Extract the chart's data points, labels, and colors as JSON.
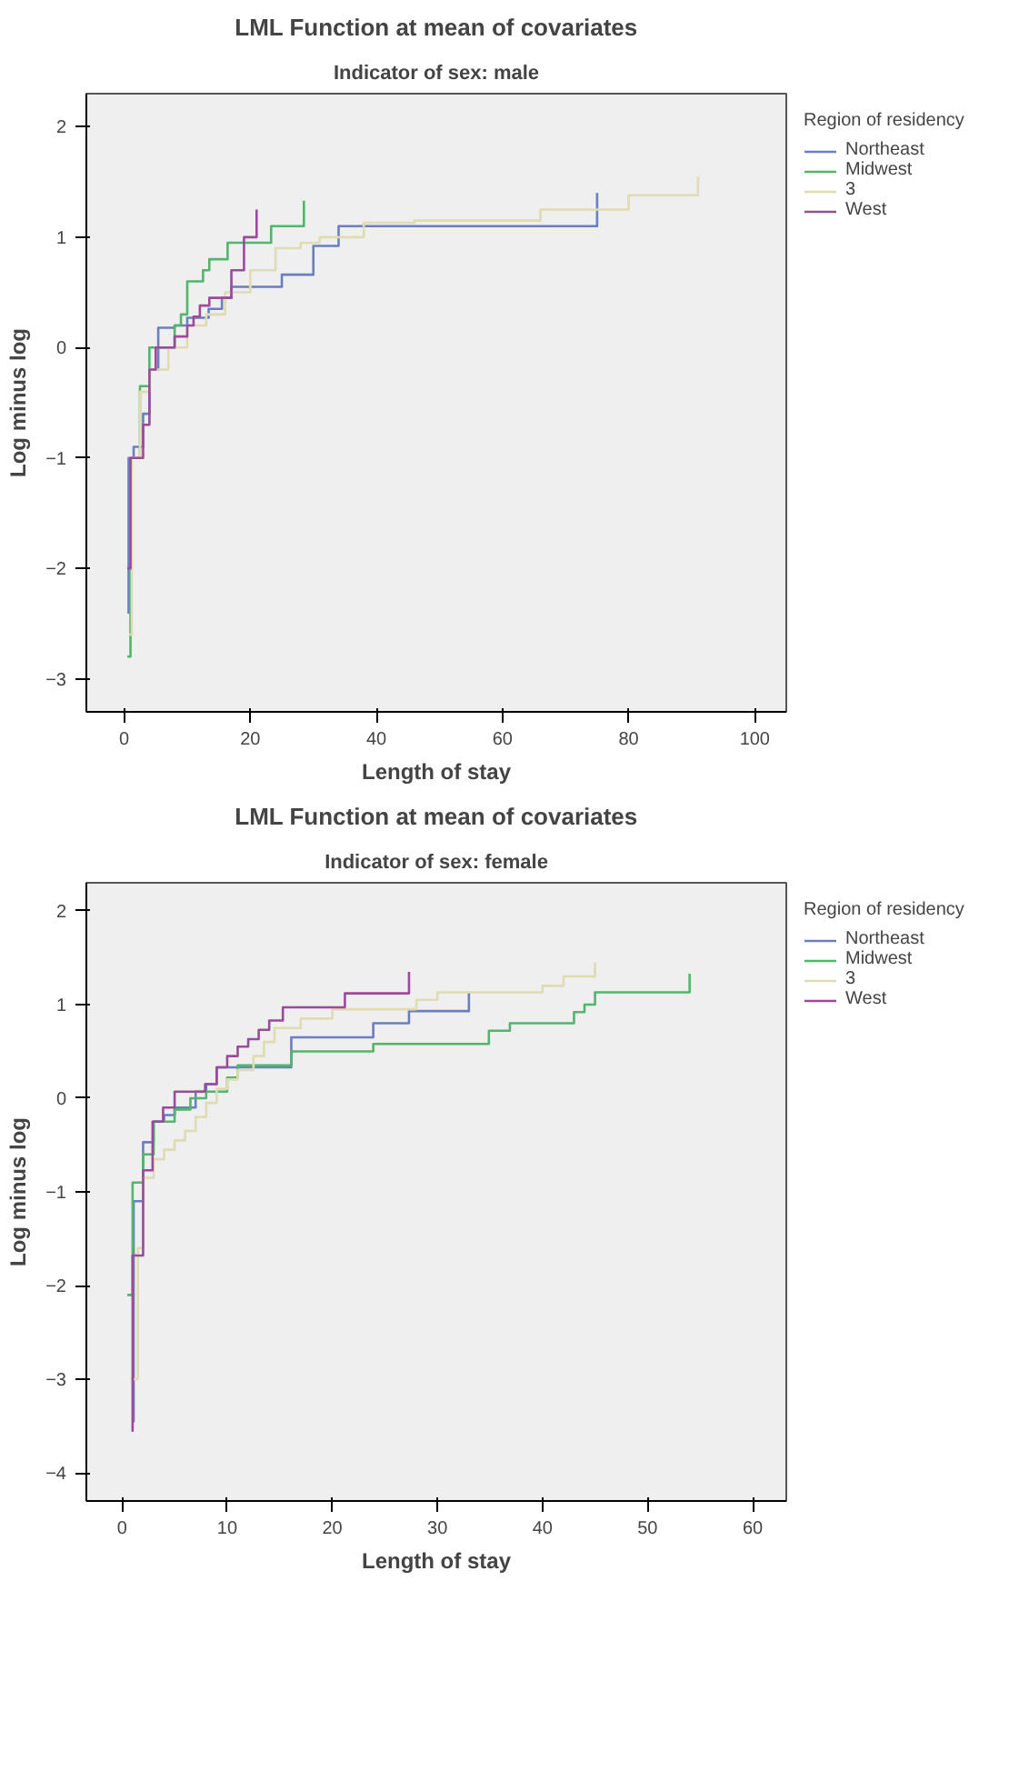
{
  "chart_data": [
    {
      "type": "step",
      "title": "LML Function at mean of covariates",
      "subtitle": "Indicator of sex: male",
      "xlabel": "Length of stay",
      "ylabel": "Log minus log",
      "legend_title": "Region of residency",
      "legend": "right",
      "grid": false,
      "xlim": [
        -6,
        105
      ],
      "xticks": [
        0,
        20,
        40,
        60,
        80,
        100
      ],
      "ylim": [
        -3.3,
        2.3
      ],
      "yticks": [
        -3,
        -2,
        -1,
        0,
        1,
        2
      ],
      "series": [
        {
          "name": "Northeast",
          "color": "#6a7fc1",
          "x": [
            0.5,
            0.7,
            1.5,
            3,
            4,
            5.4,
            8,
            10,
            13.4,
            15.5,
            17,
            25,
            30,
            34,
            75
          ],
          "values": [
            -2.4,
            -1.0,
            -0.9,
            -0.6,
            -0.2,
            0.18,
            0.2,
            0.27,
            0.35,
            0.45,
            0.55,
            0.66,
            0.92,
            1.1,
            1.4
          ]
        },
        {
          "name": "Midwest",
          "color": "#4fb66a",
          "x": [
            0.5,
            1,
            2.5,
            4,
            8,
            9,
            10,
            12.5,
            13.5,
            16.4,
            23.3,
            28.5
          ],
          "values": [
            -2.8,
            -1.0,
            -0.35,
            0.0,
            0.2,
            0.3,
            0.6,
            0.7,
            0.8,
            0.95,
            1.1,
            1.33
          ]
        },
        {
          "name": "3",
          "color": "#e0dbb0",
          "x": [
            0.8,
            1.2,
            2.5,
            4,
            7,
            10,
            13,
            16,
            20,
            24,
            28,
            31,
            38,
            46,
            66,
            80,
            91
          ],
          "values": [
            -2.6,
            -1.0,
            -0.4,
            -0.2,
            0.0,
            0.2,
            0.3,
            0.5,
            0.7,
            0.9,
            0.95,
            1.0,
            1.13,
            1.15,
            1.25,
            1.38,
            1.55
          ]
        },
        {
          "name": "West",
          "color": "#9b4b9b",
          "x": [
            0.5,
            1,
            3,
            4,
            5,
            8,
            10,
            11,
            12,
            13.5,
            17,
            19,
            21
          ],
          "values": [
            -2.0,
            -1.0,
            -0.7,
            -0.2,
            0.0,
            0.1,
            0.2,
            0.28,
            0.38,
            0.45,
            0.7,
            1.0,
            1.25
          ]
        }
      ]
    },
    {
      "type": "step",
      "title": "LML Function at mean of covariates",
      "subtitle": "Indicator of sex: female",
      "xlabel": "Length of stay",
      "ylabel": "Log minus log",
      "legend_title": "Region of residency",
      "legend": "right",
      "grid": false,
      "xlim": [
        -3.4,
        63.2
      ],
      "xticks": [
        0,
        10,
        20,
        30,
        40,
        50,
        60
      ],
      "ylim": [
        -4.3,
        2.3
      ],
      "yticks": [
        -4,
        -3,
        -2,
        -1,
        0,
        1,
        2
      ],
      "series": [
        {
          "name": "Northeast",
          "color": "#6a7fc1",
          "x": [
            1,
            1.1,
            2,
            3,
            4,
            5,
            7,
            8,
            9,
            16.1,
            23.9,
            27.3,
            33
          ],
          "values": [
            -3.45,
            -1.1,
            -0.47,
            -0.25,
            -0.18,
            -0.1,
            0.07,
            0.15,
            0.33,
            0.65,
            0.8,
            0.93,
            1.13
          ]
        },
        {
          "name": "Midwest",
          "color": "#4fb66a",
          "x": [
            0.5,
            1,
            2,
            3,
            5,
            6.5,
            8,
            10,
            11,
            16.1,
            23.9,
            34.9,
            36.9,
            43,
            44,
            45,
            54
          ],
          "values": [
            -2.1,
            -0.9,
            -0.6,
            -0.25,
            -0.12,
            0.0,
            0.07,
            0.22,
            0.35,
            0.5,
            0.58,
            0.72,
            0.8,
            0.92,
            1.0,
            1.13,
            1.33
          ]
        },
        {
          "name": "3",
          "color": "#e0dbb0",
          "x": [
            0.8,
            1.5,
            2,
            3,
            4,
            5,
            6,
            7,
            8,
            9,
            10,
            11,
            12.5,
            13.5,
            14.5,
            17,
            20,
            28,
            30,
            40,
            42,
            45
          ],
          "values": [
            -3.0,
            -1.6,
            -0.85,
            -0.65,
            -0.55,
            -0.45,
            -0.35,
            -0.2,
            -0.05,
            0.1,
            0.2,
            0.3,
            0.45,
            0.6,
            0.75,
            0.85,
            0.95,
            1.05,
            1.13,
            1.2,
            1.3,
            1.45
          ]
        },
        {
          "name": "West",
          "color": "#9b4b9b",
          "x": [
            0.9,
            1,
            2,
            2.9,
            3.9,
            5,
            7.9,
            9,
            10,
            11,
            12,
            13,
            14,
            15.3,
            21.2,
            27.3
          ],
          "values": [
            -3.55,
            -1.68,
            -0.77,
            -0.25,
            -0.1,
            0.07,
            0.15,
            0.33,
            0.45,
            0.55,
            0.63,
            0.73,
            0.83,
            0.97,
            1.12,
            1.35
          ]
        }
      ]
    }
  ]
}
